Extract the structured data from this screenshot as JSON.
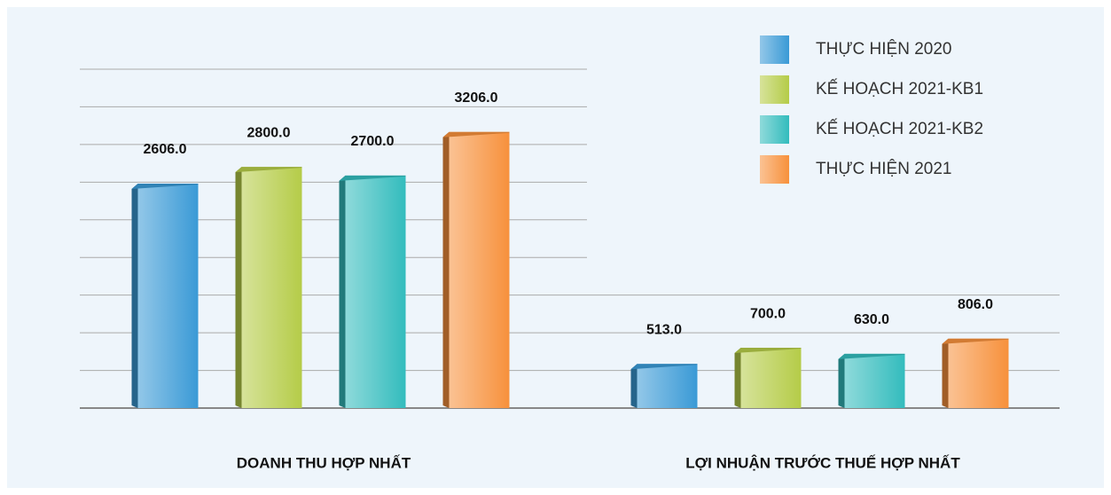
{
  "chart_data": {
    "type": "bar",
    "categories": [
      "DOANH THU HỢP NHẤT",
      "LỢI NHUẬN TRƯỚC THUẾ HỢP NHẤT"
    ],
    "series": [
      {
        "name": "THỰC HIỆN 2020",
        "color": "#3a9ad6",
        "values": [
          2606.0,
          513.0
        ],
        "value_labels": [
          "2606.0",
          "513.0"
        ]
      },
      {
        "name": "KẾ HOẠCH 2021-KB1",
        "color": "#b5cc48",
        "values": [
          2800.0,
          700.0
        ],
        "value_labels": [
          "2800.0",
          "700.0"
        ]
      },
      {
        "name": "KẾ HOẠCH 2021-KB2",
        "color": "#33bcbd",
        "values": [
          2700.0,
          630.0
        ],
        "value_labels": [
          "2700.0",
          "630.0"
        ]
      },
      {
        "name": "THỰC HIỆN 2021",
        "color": "#f7913c",
        "values": [
          3206.0,
          806.0
        ],
        "value_labels": [
          "3206.0",
          "806.0"
        ]
      }
    ],
    "ylim": [
      0,
      3935
    ],
    "yticks": [
      0,
      437,
      874,
      1312,
      1749,
      2186,
      2623,
      3061,
      3498,
      3935
    ],
    "grid": true,
    "legend": "top-right"
  }
}
